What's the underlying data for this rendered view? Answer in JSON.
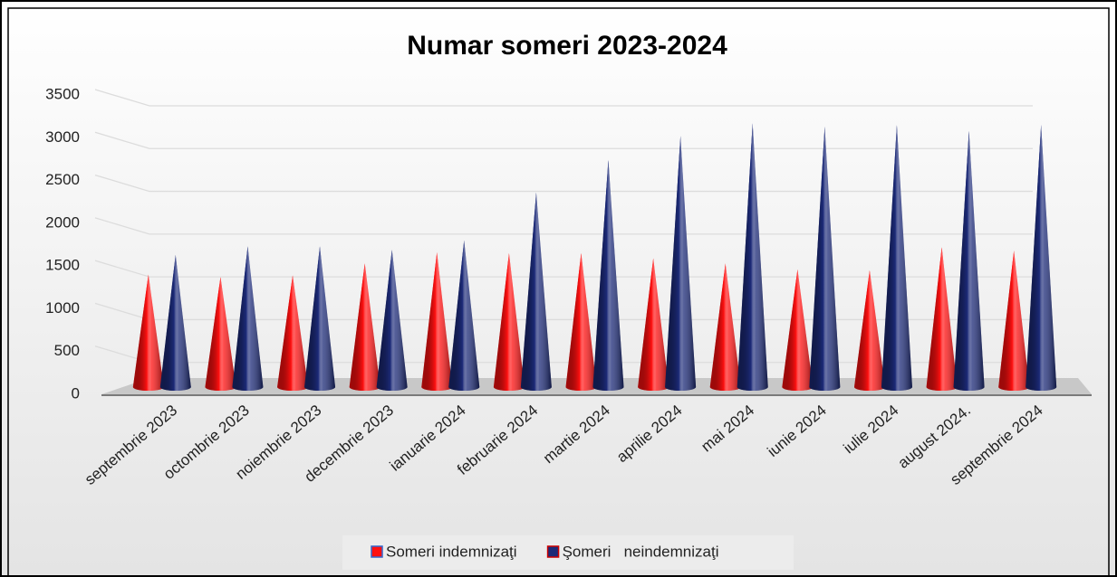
{
  "chart_data": {
    "type": "cone-bar",
    "title": "Numar someri 2023-2024",
    "categories": [
      "septembrie 2023",
      "octombrie 2023",
      "noiembrie 2023",
      "decembrie 2023",
      "ianuarie 2024",
      "februarie 2024",
      "martie 2024",
      "aprilie 2024",
      "mai 2024",
      "iunie 2024",
      "iulie 2024",
      "august 2024.",
      "septembrie 2024"
    ],
    "series": [
      {
        "name": "Someri indemnizaţi",
        "color": "#ff1010",
        "values": [
          1400,
          1370,
          1390,
          1530,
          1660,
          1650,
          1650,
          1590,
          1530,
          1460,
          1450,
          1720,
          1680
        ]
      },
      {
        "name": "Şomeri   neindemnizaţi",
        "color": "#1c2a78",
        "values": [
          1630,
          1730,
          1730,
          1690,
          1800,
          2360,
          2740,
          3020,
          3170,
          3130,
          3150,
          3080,
          3150
        ]
      }
    ],
    "ylim": [
      0,
      3500
    ],
    "yticks": [
      0,
      500,
      1000,
      1500,
      2000,
      2500,
      3000,
      3500
    ],
    "grid": true
  }
}
